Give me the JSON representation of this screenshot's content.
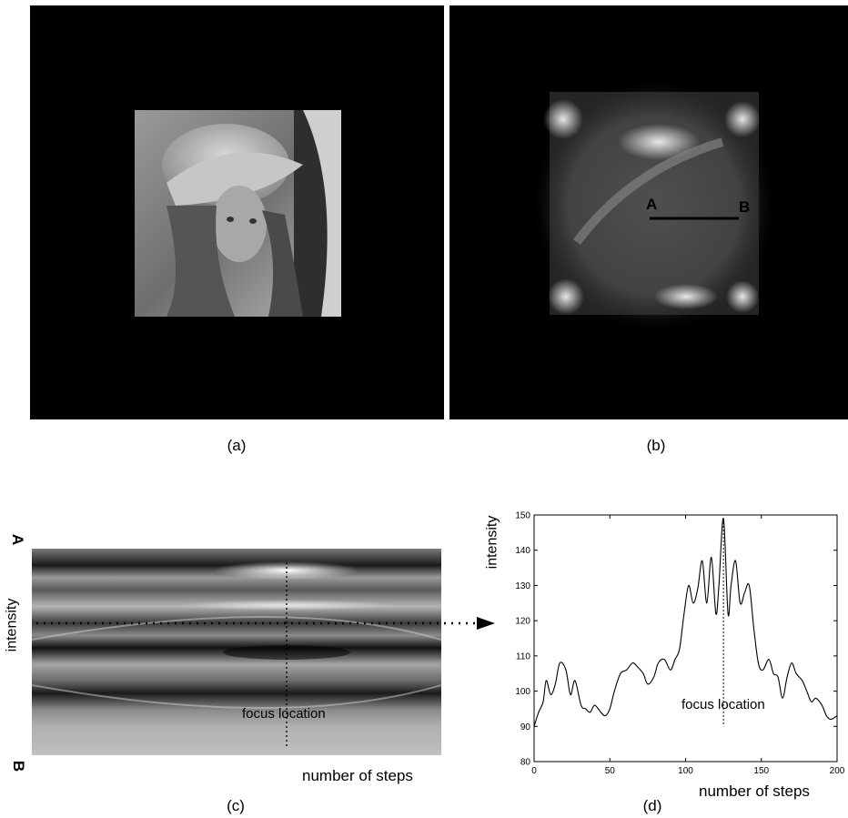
{
  "figure": {
    "captions": {
      "a": "(a)",
      "b": "(b)",
      "c": "(c)",
      "d": "(d)"
    },
    "panel_b": {
      "marker_a": "A",
      "marker_b": "B"
    },
    "panel_c": {
      "top_marker": "A",
      "bottom_marker": "B",
      "y_axis_label": "intensity",
      "x_axis_label": "number of steps",
      "annotation": "focus location"
    },
    "panel_d": {
      "y_axis_label": "intensity",
      "x_axis_label": "number of steps",
      "annotation": "focus location"
    }
  },
  "chart_data": {
    "type": "line",
    "xlabel": "number of steps",
    "ylabel": "intensity",
    "xlim": [
      0,
      200
    ],
    "ylim": [
      80,
      150
    ],
    "xticks": [
      0,
      50,
      100,
      150,
      200
    ],
    "yticks": [
      80,
      90,
      100,
      110,
      120,
      130,
      140,
      150
    ],
    "grid": false,
    "annotation": {
      "text": "focus location",
      "x": 125
    },
    "series": [
      {
        "x": [
          0,
          3,
          6,
          8,
          11,
          14,
          17,
          21,
          24,
          27,
          31,
          34,
          37,
          40,
          44,
          47,
          50,
          53,
          57,
          61,
          65,
          68,
          72,
          75,
          79,
          82,
          86,
          90,
          93,
          96,
          99,
          102,
          105,
          108,
          111,
          114,
          117,
          120,
          122,
          125,
          128,
          130,
          133,
          136,
          139,
          142,
          145,
          148,
          151,
          155,
          158,
          161,
          164,
          167,
          170,
          173,
          177,
          180,
          183,
          186,
          190,
          193,
          196,
          200
        ],
        "values": [
          90,
          94,
          97,
          103,
          99,
          102,
          108,
          106,
          99,
          103,
          96,
          95,
          94,
          96,
          94,
          93,
          95,
          100,
          105,
          106,
          108,
          107,
          105,
          102,
          104,
          108,
          109,
          106,
          109,
          112,
          122,
          130,
          125,
          129,
          137,
          125,
          138,
          122,
          130,
          149,
          122,
          130,
          137,
          125,
          128,
          130,
          118,
          108,
          106,
          109,
          105,
          104,
          98,
          104,
          108,
          105,
          103,
          100,
          97,
          98,
          96,
          93,
          92,
          93
        ]
      }
    ]
  }
}
